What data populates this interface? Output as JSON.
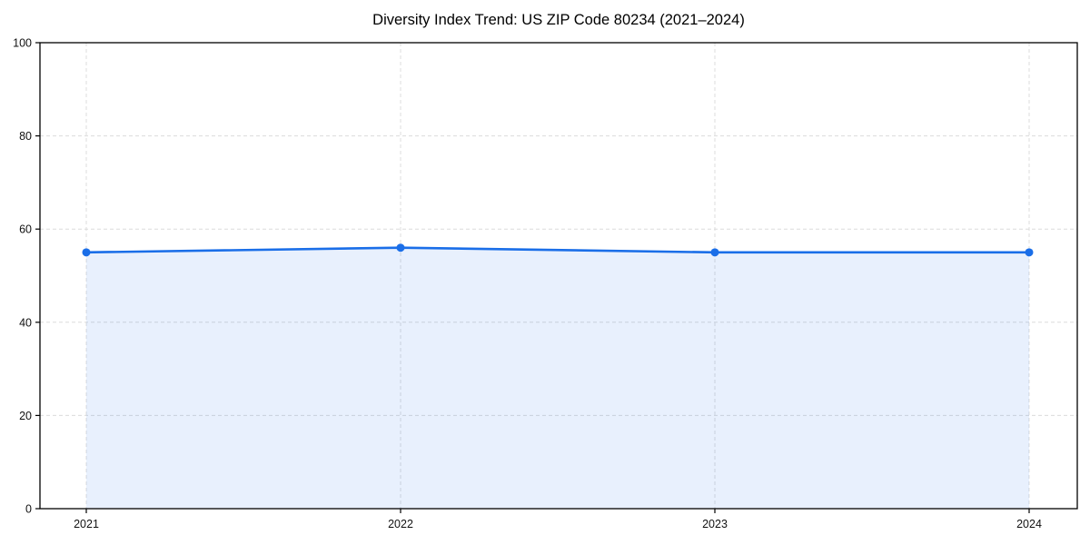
{
  "chart_data": {
    "type": "area",
    "title": "Diversity Index Trend: US ZIP Code 80234 (2021–2024)",
    "x": [
      2021,
      2022,
      2023,
      2024
    ],
    "xtick_labels": [
      "2021",
      "2022",
      "2023",
      "2024"
    ],
    "series": [
      {
        "name": "Diversity Index",
        "values": [
          55,
          56,
          55,
          55
        ]
      }
    ],
    "xlabel": "",
    "ylabel": "",
    "ylim": [
      0,
      100
    ],
    "yticks": [
      0,
      20,
      40,
      60,
      80,
      100
    ],
    "grid": "dashed-both-axes",
    "legend_position": "none",
    "line_color": "#1a6ee8",
    "fill_opacity": 0.1,
    "marker": "circle",
    "grid_color": "#dcdcdc",
    "spine_color": "#000000",
    "background_color": "#ffffff"
  }
}
